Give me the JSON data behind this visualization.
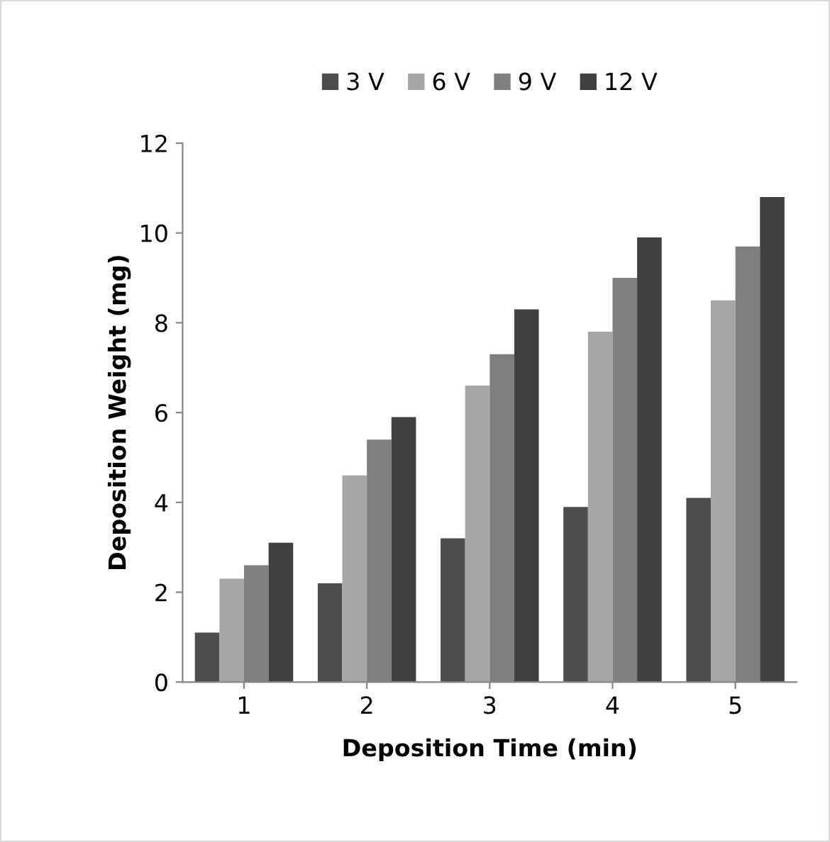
{
  "chart_data": {
    "type": "bar",
    "xlabel": "Deposition Time (min)",
    "ylabel": "Deposition Weight (mg)",
    "categories": [
      "1",
      "2",
      "3",
      "4",
      "5"
    ],
    "series": [
      {
        "name": "3 V",
        "color": "#4d4d4d",
        "values": [
          1.1,
          2.2,
          3.2,
          3.9,
          4.1
        ]
      },
      {
        "name": "6 V",
        "color": "#a6a6a6",
        "values": [
          2.3,
          4.6,
          6.6,
          7.8,
          8.5
        ]
      },
      {
        "name": "9 V",
        "color": "#7f7f7f",
        "values": [
          2.6,
          5.4,
          7.3,
          9.0,
          9.7
        ]
      },
      {
        "name": "12 V",
        "color": "#404040",
        "values": [
          3.1,
          5.9,
          8.3,
          9.9,
          10.8
        ]
      }
    ],
    "ylim": [
      0,
      12
    ],
    "yticks": [
      0,
      2,
      4,
      6,
      8,
      10,
      12
    ],
    "grid": false,
    "legend": "top"
  }
}
